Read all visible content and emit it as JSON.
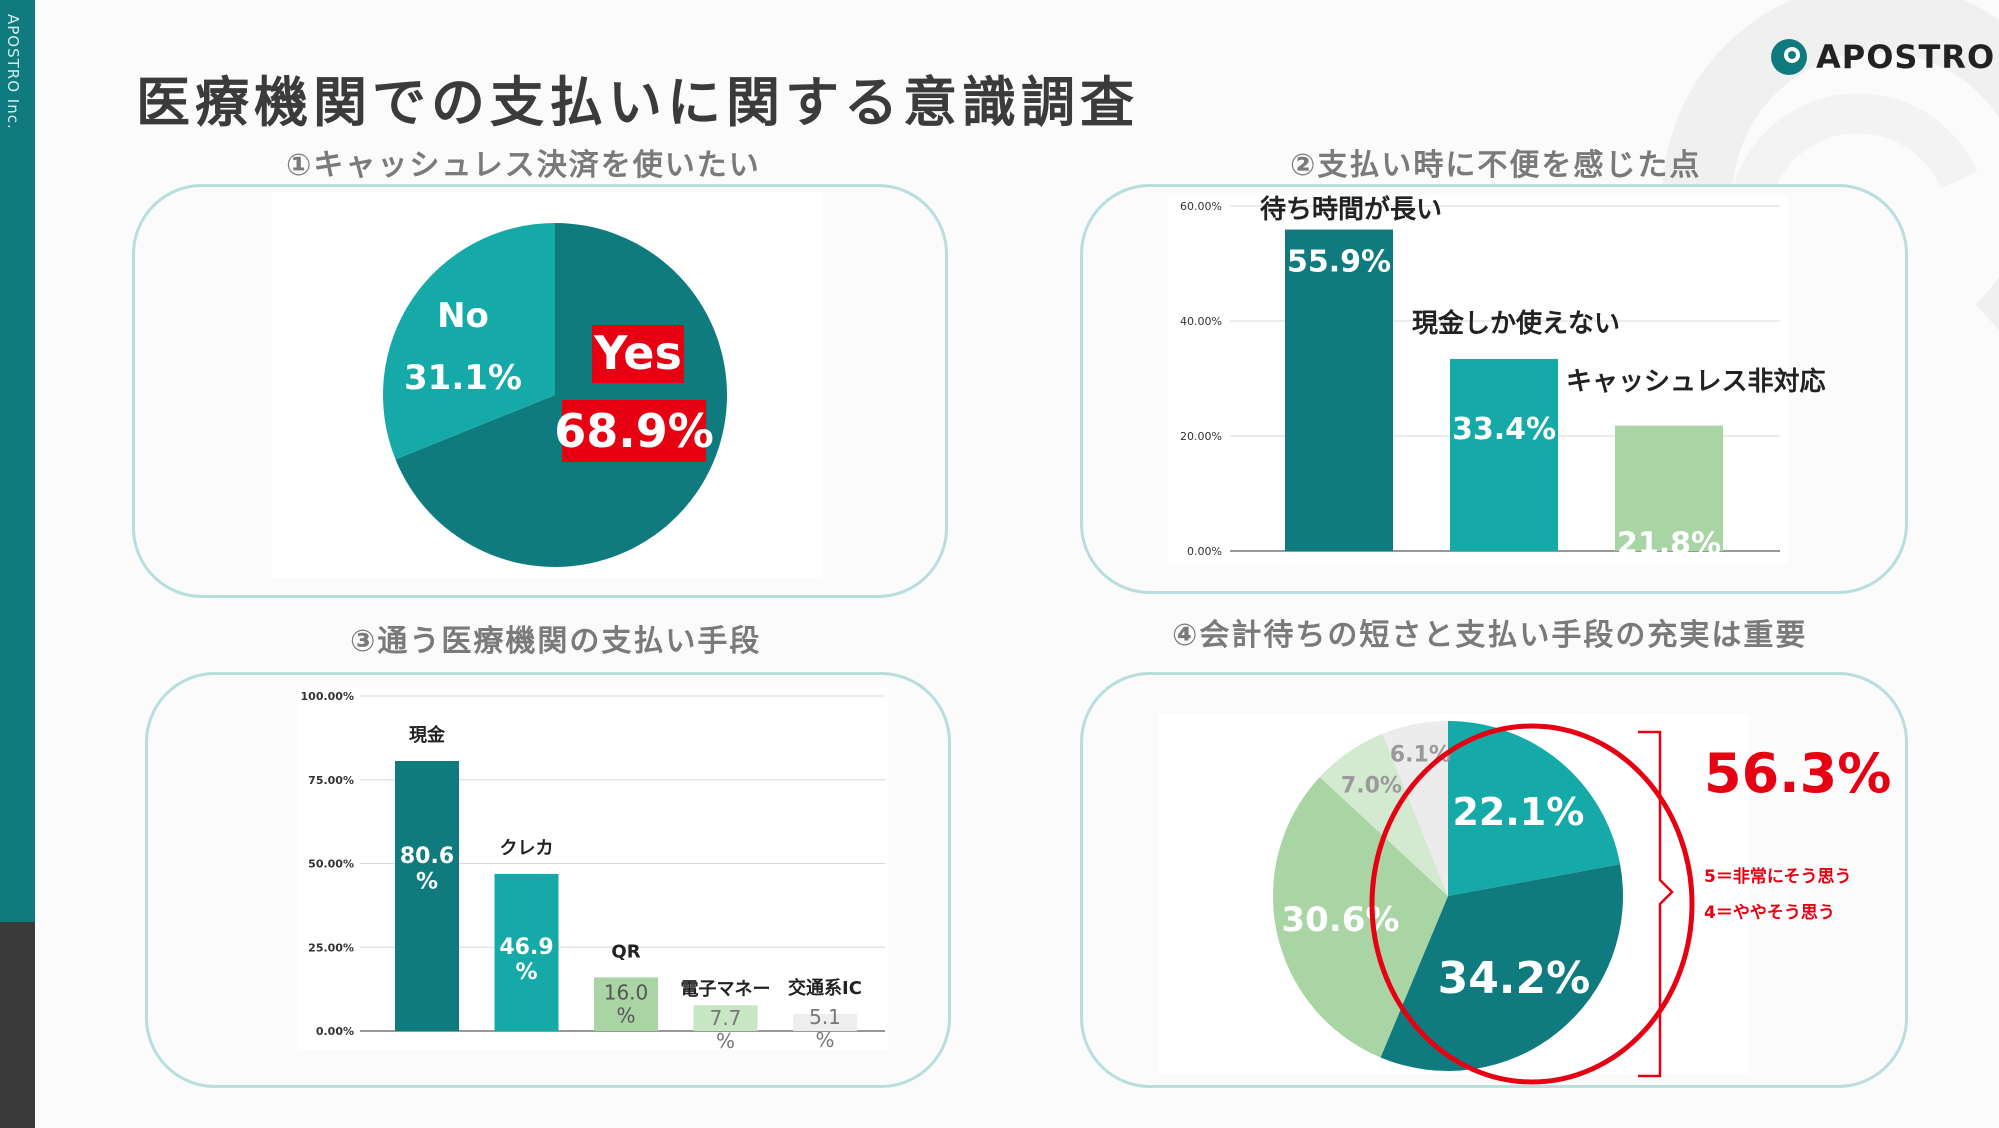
{
  "brand": {
    "side_text": "APOSTRO Inc.",
    "logo": "APOSTRO"
  },
  "title": "医療機関での支払いに関する意識調査",
  "colors": {
    "dark_teal": "#0f7b7f",
    "teal": "#15aaa8",
    "light_green": "#a9d5a4",
    "pale_green": "#d3ead0",
    "pale_gray": "#ececec",
    "red": "#e60012"
  },
  "chart_data": [
    {
      "type": "pie",
      "title": "①キャッシュレス決済を使いたい",
      "labels": [
        "Yes",
        "No"
      ],
      "values": [
        68.9,
        31.1
      ],
      "value_labels": [
        "68.9%",
        "31.1%"
      ],
      "colors": [
        "#0f7b7f",
        "#15aaa8"
      ]
    },
    {
      "type": "bar",
      "title": "②支払い時に不便を感じた点",
      "categories": [
        "待ち時間が長い",
        "現金しか使えない",
        "キャッシュレス非対応"
      ],
      "values": [
        55.9,
        33.4,
        21.8
      ],
      "value_labels": [
        "55.9%",
        "33.4%",
        "21.8%"
      ],
      "ylim": [
        0,
        60
      ],
      "yticks": [
        "0.00%",
        "20.00%",
        "40.00%",
        "60.00%"
      ],
      "colors": [
        "#0f7b7f",
        "#15aaa8",
        "#a9d5a4"
      ]
    },
    {
      "type": "bar",
      "title": "③通う医療機関の支払い手段",
      "categories": [
        "現金",
        "クレカ",
        "QR",
        "電子マネー",
        "交通系IC"
      ],
      "values": [
        80.6,
        46.9,
        16.0,
        7.7,
        5.1
      ],
      "value_labels": [
        "80.6\n%",
        "46.9\n%",
        "16.0\n%",
        "7.7\n%",
        "5.1\n%"
      ],
      "ylim": [
        0,
        100
      ],
      "yticks": [
        "0.00%",
        "25.00%",
        "50.00%",
        "75.00%",
        "100.00%"
      ],
      "colors": [
        "#0f7b7f",
        "#15aaa8",
        "#a9d5a4",
        "#c9e6c4",
        "#eeeeee"
      ]
    },
    {
      "type": "pie",
      "title": "④会計待ちの短さと支払い手段の充実は重要",
      "values": [
        22.1,
        34.2,
        30.6,
        7.0,
        6.1
      ],
      "value_labels": [
        "22.1%",
        "34.2%",
        "30.6%",
        "7.0%",
        "6.1%"
      ],
      "colors": [
        "#15aaa8",
        "#0f7b7f",
        "#a9d5a4",
        "#d3ead0",
        "#ececec"
      ],
      "highlight": {
        "total": "56.3%",
        "notes": [
          "5＝非常にそう思う",
          "4＝ややそう思う"
        ]
      }
    }
  ]
}
